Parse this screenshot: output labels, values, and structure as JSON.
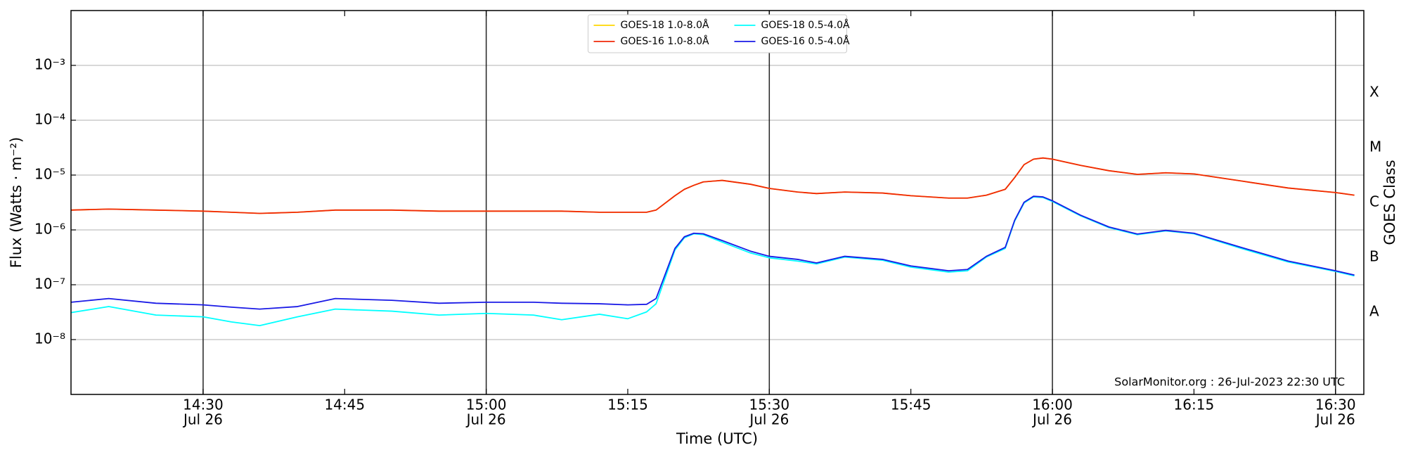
{
  "chart_data": {
    "type": "line",
    "xlabel": "Time (UTC)",
    "ylabel": "Flux (Watts · m⁻²)",
    "y2label": "GOES Class",
    "annotation": "SolarMonitor.org : 26-Jul-2023 22:30 UTC",
    "log_y": true,
    "grid": true,
    "legend": "upper center",
    "x": [
      "14:16",
      "14:20",
      "14:25",
      "14:30",
      "14:33",
      "14:36",
      "14:40",
      "14:44",
      "14:50",
      "14:55",
      "15:00",
      "15:05",
      "15:08",
      "15:12",
      "15:15",
      "15:17",
      "15:18",
      "15:20",
      "15:21",
      "15:22",
      "15:23",
      "15:25",
      "15:28",
      "15:30",
      "15:33",
      "15:35",
      "15:38",
      "15:42",
      "15:45",
      "15:49",
      "15:51",
      "15:53",
      "15:55",
      "15:56",
      "15:57",
      "15:58",
      "15:59",
      "16:00",
      "16:03",
      "16:06",
      "16:09",
      "16:12",
      "16:15",
      "16:20",
      "16:25",
      "16:30",
      "16:32"
    ],
    "xlim": [
      "14:16",
      "16:33"
    ],
    "xticks": [
      {
        "value": "14:30",
        "label": "14:30",
        "date": "Jul 26"
      },
      {
        "value": "14:45",
        "label": "14:45"
      },
      {
        "value": "15:00",
        "label": "15:00",
        "date": "Jul 26"
      },
      {
        "value": "15:15",
        "label": "15:15"
      },
      {
        "value": "15:30",
        "label": "15:30",
        "date": "Jul 26"
      },
      {
        "value": "15:45",
        "label": "15:45"
      },
      {
        "value": "16:00",
        "label": "16:00",
        "date": "Jul 26"
      },
      {
        "value": "16:15",
        "label": "16:15"
      },
      {
        "value": "16:30",
        "label": "16:30",
        "date": "Jul 26"
      }
    ],
    "ylim": [
      1e-09,
      0.01
    ],
    "yticks": [
      {
        "value": 1e-08,
        "label": "10⁻⁸"
      },
      {
        "value": 1e-07,
        "label": "10⁻⁷"
      },
      {
        "value": 1e-06,
        "label": "10⁻⁶"
      },
      {
        "value": 1e-05,
        "label": "10⁻⁵"
      },
      {
        "value": 0.0001,
        "label": "10⁻⁴"
      },
      {
        "value": 0.001,
        "label": "10⁻³"
      }
    ],
    "y2lim": [
      1e-09,
      0.01
    ],
    "y2ticks": [
      {
        "value": 3.16e-08,
        "label": "A"
      },
      {
        "value": 3.16e-07,
        "label": "B"
      },
      {
        "value": 3.16e-06,
        "label": "C"
      },
      {
        "value": 3.16e-05,
        "label": "M"
      },
      {
        "value": 0.000316,
        "label": "X"
      }
    ],
    "series": [
      {
        "name": "GOES-18 1.0-8.0Å",
        "color": "#ffd700",
        "values": [
          2.3e-06,
          2.4e-06,
          2.3e-06,
          2.2e-06,
          2.1e-06,
          2e-06,
          2.1e-06,
          2.3e-06,
          2.3e-06,
          2.2e-06,
          2.2e-06,
          2.2e-06,
          2.2e-06,
          2.1e-06,
          2.1e-06,
          2.1e-06,
          2.3e-06,
          4.2e-06,
          5.5e-06,
          6.5e-06,
          7.5e-06,
          8e-06,
          6.8e-06,
          5.7e-06,
          4.9e-06,
          4.6e-06,
          4.9e-06,
          4.7e-06,
          4.2e-06,
          3.8e-06,
          3.8e-06,
          4.3e-06,
          5.5e-06,
          9e-06,
          1.55e-05,
          1.95e-05,
          2.05e-05,
          1.95e-05,
          1.5e-05,
          1.2e-05,
          1.03e-05,
          1.1e-05,
          1.05e-05,
          7.8e-06,
          5.8e-06,
          4.8e-06,
          4.3e-06
        ]
      },
      {
        "name": "GOES-16 1.0-8.0Å",
        "color": "#f02808",
        "values": [
          2.3e-06,
          2.4e-06,
          2.3e-06,
          2.2e-06,
          2.1e-06,
          2e-06,
          2.1e-06,
          2.3e-06,
          2.3e-06,
          2.2e-06,
          2.2e-06,
          2.2e-06,
          2.2e-06,
          2.1e-06,
          2.1e-06,
          2.1e-06,
          2.3e-06,
          4.2e-06,
          5.5e-06,
          6.5e-06,
          7.5e-06,
          8e-06,
          6.8e-06,
          5.7e-06,
          4.9e-06,
          4.6e-06,
          4.9e-06,
          4.7e-06,
          4.2e-06,
          3.8e-06,
          3.8e-06,
          4.3e-06,
          5.5e-06,
          9e-06,
          1.55e-05,
          1.95e-05,
          2.05e-05,
          1.95e-05,
          1.5e-05,
          1.2e-05,
          1.03e-05,
          1.1e-05,
          1.05e-05,
          7.8e-06,
          5.8e-06,
          4.8e-06,
          4.3e-06
        ]
      },
      {
        "name": "GOES-18 0.5-4.0Å",
        "color": "#00ffff",
        "values": [
          3.1e-08,
          4e-08,
          2.8e-08,
          2.6e-08,
          2.1e-08,
          1.8e-08,
          2.6e-08,
          3.6e-08,
          3.3e-08,
          2.8e-08,
          3e-08,
          2.8e-08,
          2.3e-08,
          2.9e-08,
          2.4e-08,
          3.2e-08,
          4.5e-08,
          4.3e-07,
          7.2e-07,
          8.5e-07,
          8.2e-07,
          6e-07,
          3.8e-07,
          3.1e-07,
          2.7e-07,
          2.4e-07,
          3.2e-07,
          2.8e-07,
          2.1e-07,
          1.7e-07,
          1.8e-07,
          3.2e-07,
          4.6e-07,
          1.45e-06,
          3.1e-06,
          4e-06,
          3.9e-06,
          3.3e-06,
          1.8e-06,
          1.1e-06,
          8.2e-07,
          9.6e-07,
          8.5e-07,
          4.6e-07,
          2.6e-07,
          1.75e-07,
          1.45e-07
        ]
      },
      {
        "name": "GOES-16 0.5-4.0Å",
        "color": "#1a1ae6",
        "values": [
          4.8e-08,
          5.6e-08,
          4.6e-08,
          4.3e-08,
          3.9e-08,
          3.6e-08,
          4e-08,
          5.6e-08,
          5.2e-08,
          4.6e-08,
          4.8e-08,
          4.8e-08,
          4.6e-08,
          4.5e-08,
          4.3e-08,
          4.4e-08,
          5.6e-08,
          4.6e-07,
          7.5e-07,
          8.7e-07,
          8.5e-07,
          6.4e-07,
          4.1e-07,
          3.3e-07,
          2.9e-07,
          2.5e-07,
          3.3e-07,
          2.9e-07,
          2.2e-07,
          1.8e-07,
          1.9e-07,
          3.3e-07,
          4.8e-07,
          1.5e-06,
          3.2e-06,
          4.1e-06,
          4e-06,
          3.4e-06,
          1.85e-06,
          1.13e-06,
          8.4e-07,
          9.8e-07,
          8.7e-07,
          4.8e-07,
          2.7e-07,
          1.8e-07,
          1.5e-07
        ]
      }
    ]
  }
}
